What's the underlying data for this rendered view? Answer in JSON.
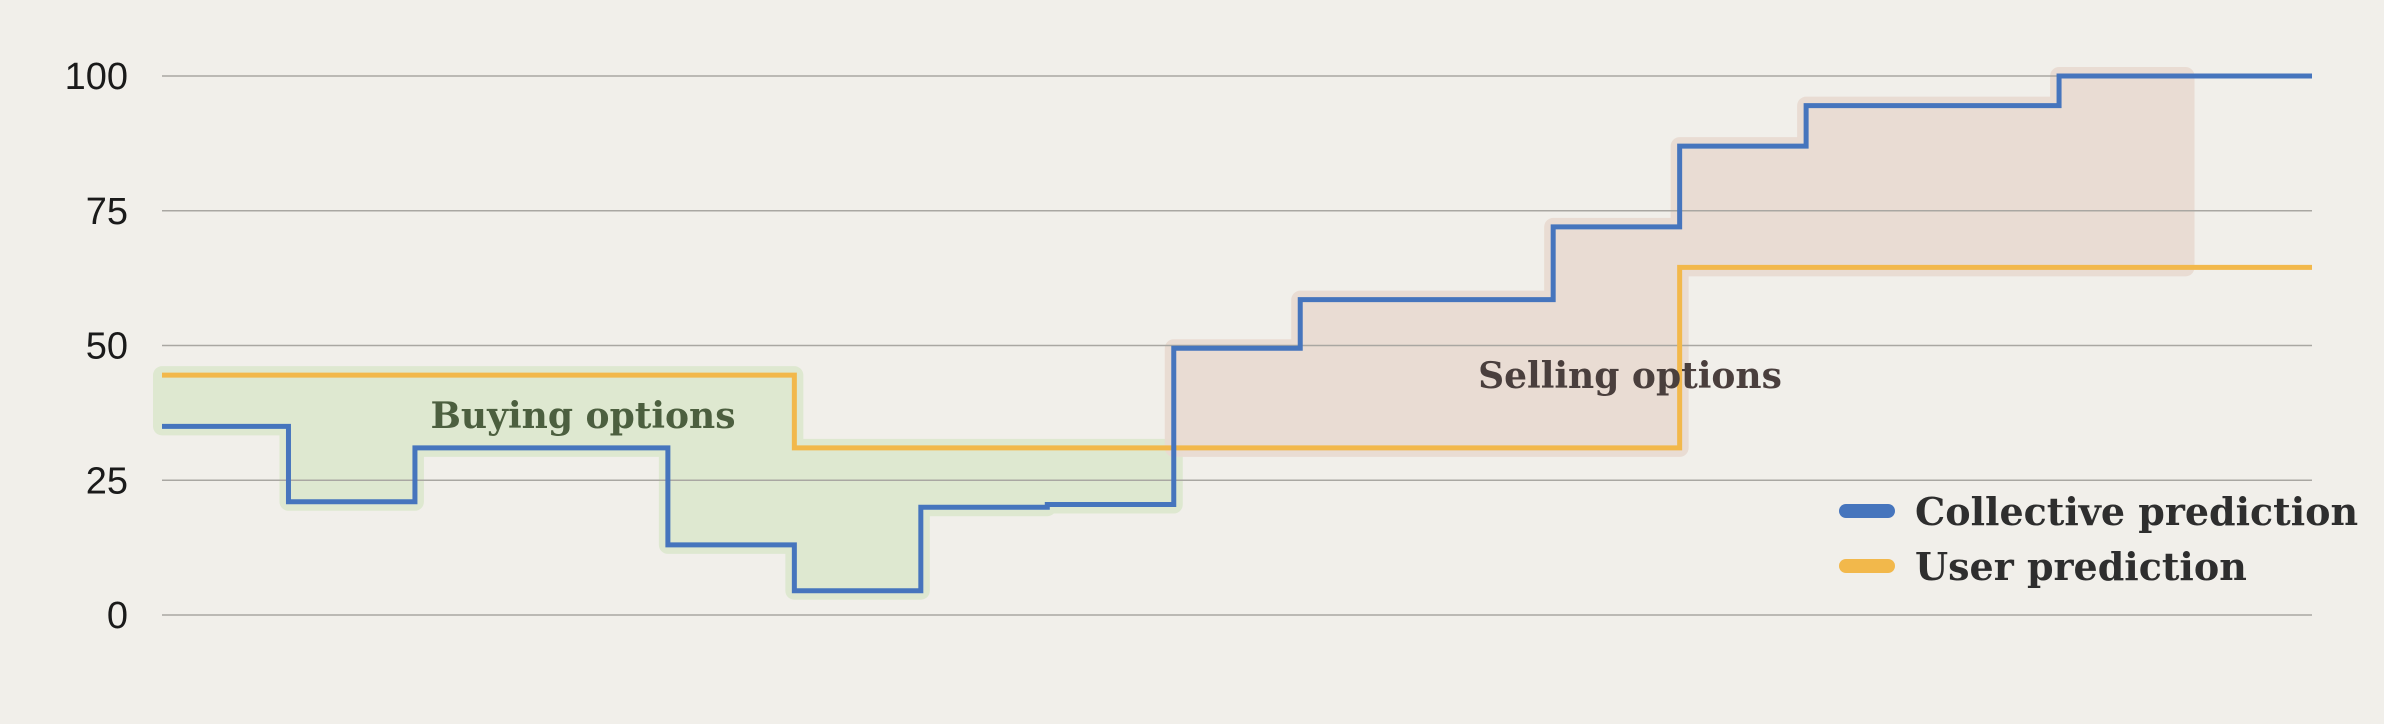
{
  "chart_data": {
    "type": "line",
    "step": true,
    "ylim": [
      0,
      100
    ],
    "yticks": [
      0,
      25,
      50,
      75,
      100
    ],
    "ytick_labels": [
      "0",
      "25",
      "50",
      "75",
      "100"
    ],
    "grid": true,
    "series": [
      {
        "name": "Collective prediction",
        "color": "#4675bd",
        "values": [
          35,
          21,
          31,
          31,
          13,
          4.5,
          20,
          20.5,
          49.5,
          58.5,
          58.5,
          72,
          87,
          94.5,
          94.5,
          100,
          100
        ]
      },
      {
        "name": "User prediction",
        "color": "#f2b84b",
        "values": [
          44.5,
          44.5,
          44.5,
          44.5,
          44.5,
          31,
          31,
          31,
          31,
          31,
          31,
          31,
          64.5,
          64.5,
          64.5,
          64.5,
          64.5
        ]
      }
    ],
    "regions": [
      {
        "label": "Buying options",
        "color": "#dde8cf",
        "text_color": "#4c5f3f",
        "from": 0,
        "to": 8
      },
      {
        "label": "Selling options",
        "color": "#e9dcd2",
        "text_color": "#4a3f3d",
        "from": 8,
        "to": 16
      }
    ],
    "legend": {
      "placement": "bottom-right"
    }
  }
}
